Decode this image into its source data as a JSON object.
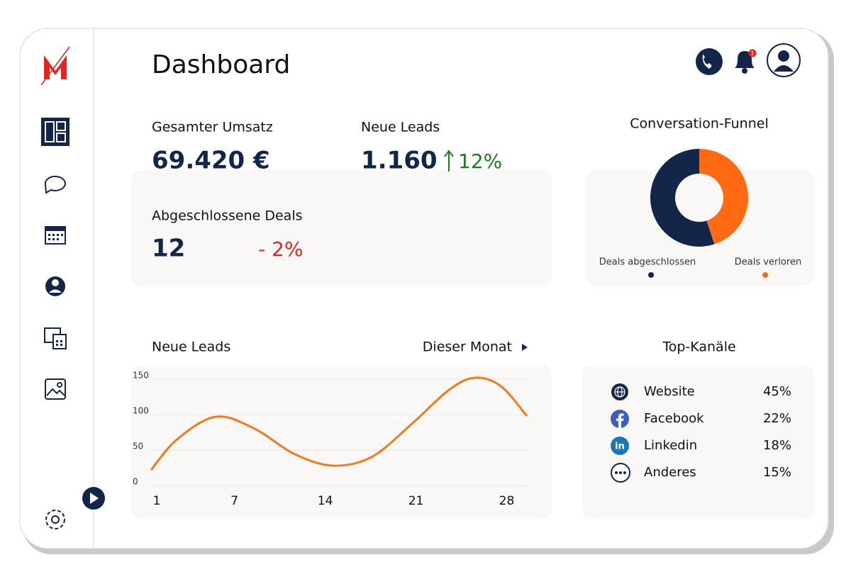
{
  "header": {
    "title": "Dashboard",
    "notification_count": "1"
  },
  "kpis": {
    "revenue": {
      "label": "Gesamter Umsatz",
      "value": "69.420 €"
    },
    "leads": {
      "label": "Neue Leads",
      "value": "1.160",
      "change": "12%"
    },
    "deals": {
      "label": "Abgeschlossene Deals",
      "value": "12",
      "change": "- 2%"
    }
  },
  "chart_data": [
    {
      "type": "pie",
      "title": "Conversation-Funnel",
      "donut": true,
      "categories": [
        "Deals abgeschlossen",
        "Deals verloren"
      ],
      "values": [
        55,
        45
      ],
      "colors": [
        "#13264a",
        "#ff6a13"
      ]
    },
    {
      "type": "line",
      "title": "Neue Leads",
      "period": "Dieser Monat",
      "x": [
        1,
        3,
        6,
        9,
        12,
        15,
        18,
        21,
        24,
        26,
        28,
        30
      ],
      "values": [
        22,
        65,
        97,
        80,
        45,
        28,
        40,
        85,
        135,
        152,
        140,
        98
      ],
      "color": "#f07a1f",
      "xlim": [
        1,
        30
      ],
      "ylim": [
        0,
        160
      ],
      "xticks": [
        1,
        7,
        14,
        21,
        28
      ],
      "yticks": [
        0,
        50,
        100,
        150
      ],
      "grid": true
    }
  ],
  "top_channels": {
    "title": "Top-Kanäle",
    "rows": [
      {
        "name": "Website",
        "share": "45%"
      },
      {
        "name": "Facebook",
        "share": "22%"
      },
      {
        "name": "Linkedin",
        "share": "18%"
      },
      {
        "name": "Anderes",
        "share": "15%"
      }
    ]
  }
}
